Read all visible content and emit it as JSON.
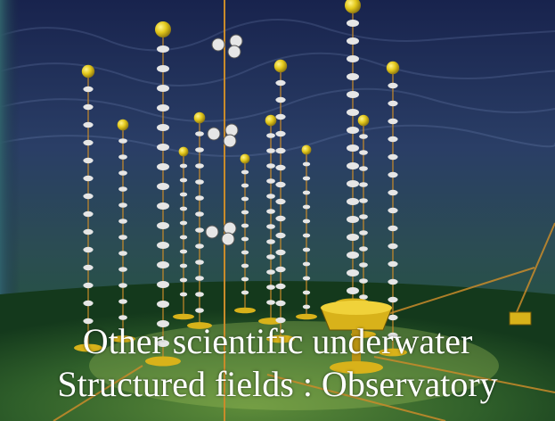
{
  "caption": {
    "line1": "Other scientific underwater",
    "line2": "Structured fields : Observatory"
  },
  "scene": {
    "description_icon": "underwater-neutrino-telescope-illustration",
    "colors": {
      "water_top": "#1e2a55",
      "water_mid": "#26405c",
      "water_bottom": "#1f5a28",
      "cable": "#c98b2a",
      "buoy": "#e8d21a",
      "sensor": "#e6e6e6"
    }
  }
}
